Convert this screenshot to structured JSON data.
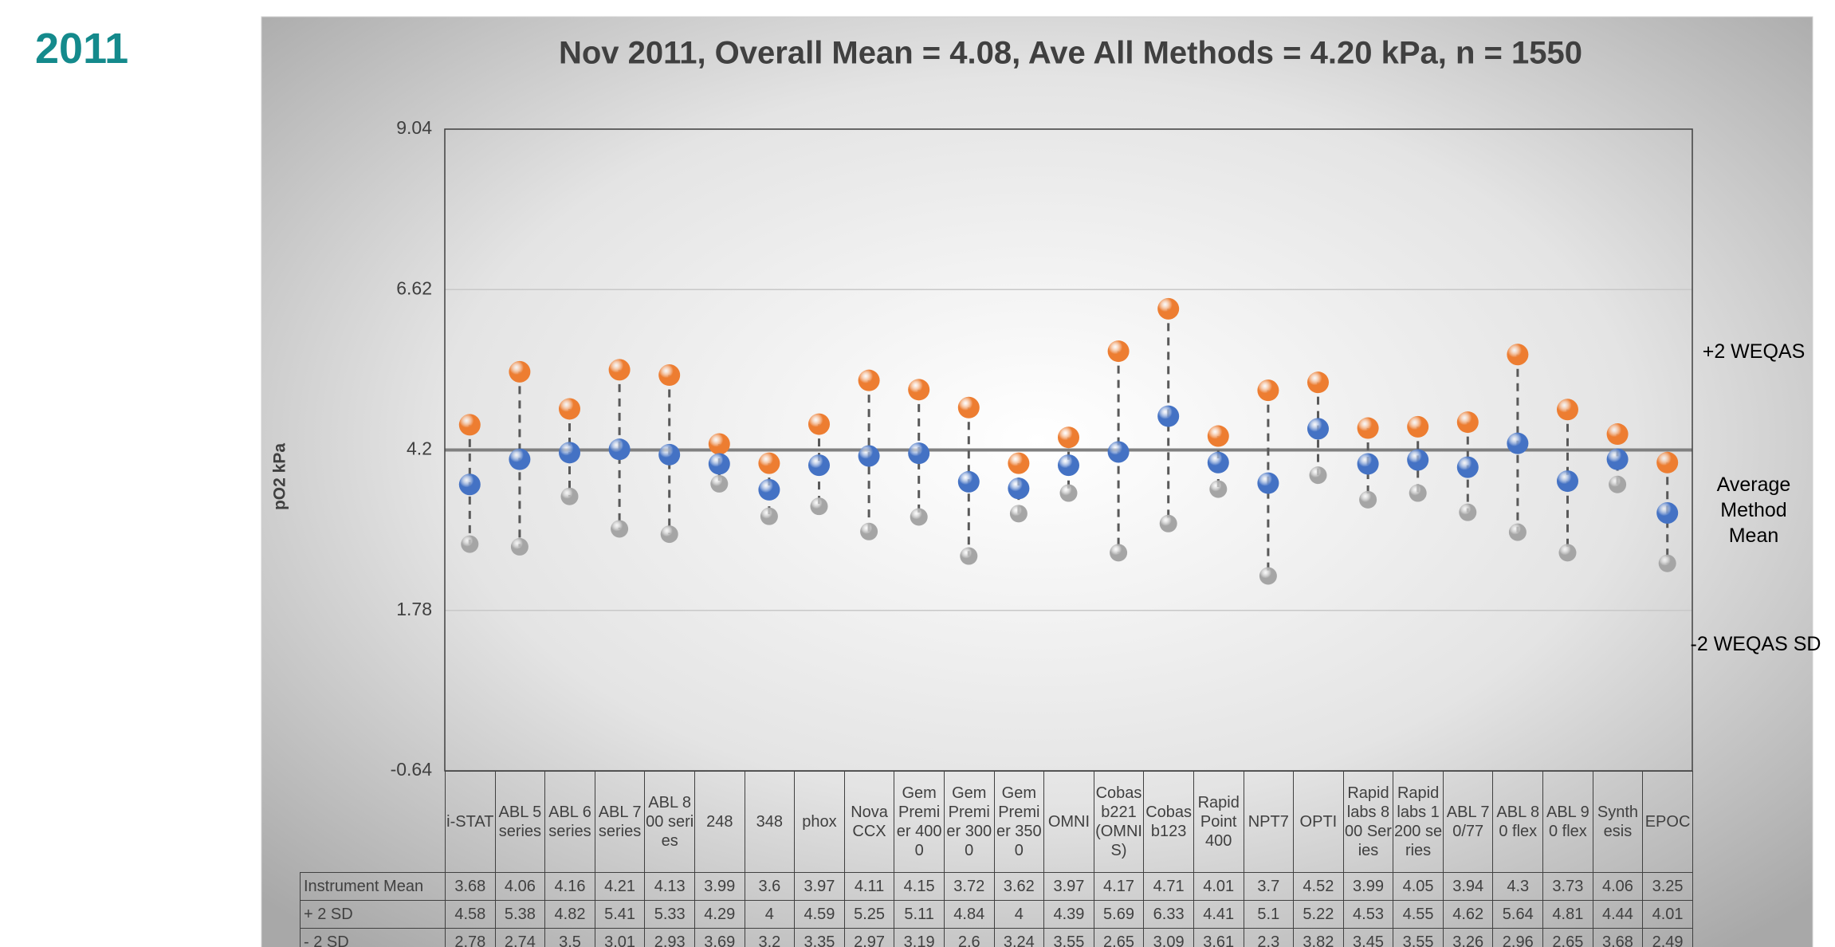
{
  "year_label": "2011",
  "chart_data": {
    "type": "line",
    "title": "Nov 2011, Overall Mean = 4.08, Ave All Methods  = 4.20 kPa, n = 1550",
    "y_label": "pO2 kPa",
    "categories": [
      "i-STAT",
      "ABL 5 series",
      "ABL 6 series",
      "ABL 7 series",
      "ABL 800 series",
      "248",
      "348",
      "phox",
      "Nova CCX",
      "Gem Premier 4000",
      "Gem Premier 3000",
      "Gem Premier 3500",
      "OMNI",
      "Cobas b221 (OMNI S)",
      "Cobas b123",
      "Rapid Point 400",
      "NPT7",
      "OPTI",
      "Rapid labs 800 Series",
      "Rapid labs 1200 series",
      "ABL 70/77",
      "ABL 80 flex",
      "ABL 90 flex",
      "Synthesis",
      "EPOC"
    ],
    "series": [
      {
        "name": "Instrument Mean",
        "color": "#4472c4",
        "values": [
          3.68,
          4.06,
          4.16,
          4.21,
          4.13,
          3.99,
          3.6,
          3.97,
          4.11,
          4.15,
          3.72,
          3.62,
          3.97,
          4.17,
          4.71,
          4.01,
          3.7,
          4.52,
          3.99,
          4.05,
          3.94,
          4.3,
          3.73,
          4.06,
          3.25
        ]
      },
      {
        "name": "+ 2 SD",
        "color": "#ed7d31",
        "values": [
          4.58,
          5.38,
          4.82,
          5.41,
          5.33,
          4.29,
          4,
          4.59,
          5.25,
          5.11,
          4.84,
          4,
          4.39,
          5.69,
          6.33,
          4.41,
          5.1,
          5.22,
          4.53,
          4.55,
          4.62,
          5.64,
          4.81,
          4.44,
          4.01
        ]
      },
      {
        "name": "- 2 SD",
        "color": "#a5a5a5",
        "values": [
          2.78,
          2.74,
          3.5,
          3.01,
          2.93,
          3.69,
          3.2,
          3.35,
          2.97,
          3.19,
          2.6,
          3.24,
          3.55,
          2.65,
          3.09,
          3.61,
          2.3,
          3.82,
          3.45,
          3.55,
          3.26,
          2.96,
          2.65,
          3.68,
          2.49
        ]
      }
    ],
    "ylim": [
      -0.64,
      9.04
    ],
    "yticks": [
      -0.64,
      1.78,
      4.2,
      6.62,
      9.04
    ],
    "reference_line": {
      "value": 4.2,
      "color": "#808080"
    },
    "annotations": [
      "+2 WEQAS",
      "Average Method Mean",
      "-2 WEQAS SD"
    ]
  }
}
